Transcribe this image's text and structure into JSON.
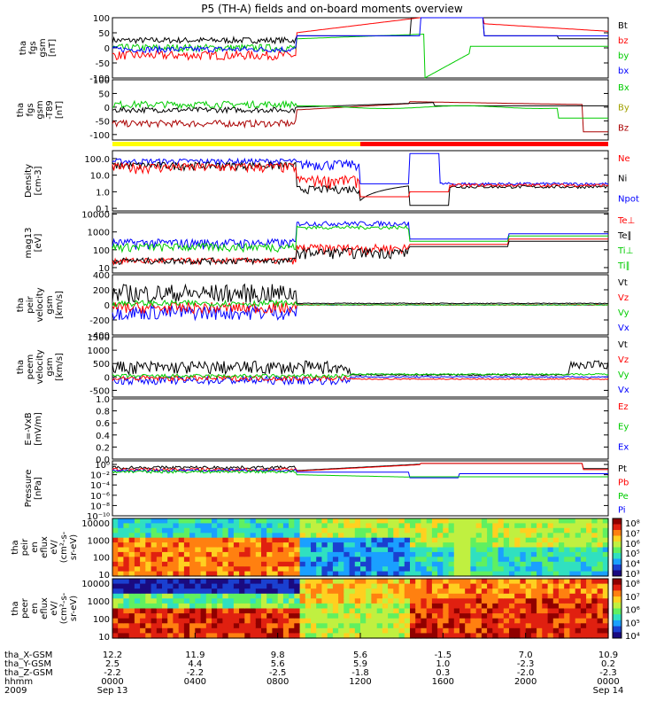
{
  "chart_data": {
    "type": "line",
    "title": "P5 (TH-A) fields and on-board moments overview",
    "panels": [
      {
        "id": "fgs",
        "ylabel_lines": [
          "tha",
          "fgs",
          "gsm",
          "[nT]"
        ],
        "ticks": [
          "100",
          "50",
          "0",
          "-50",
          "-100"
        ],
        "tick_vals": [
          100,
          50,
          0,
          -50,
          -100
        ],
        "ylim": [
          -100,
          100
        ],
        "legend": [
          {
            "name": "Bt",
            "color": "#000000"
          },
          {
            "name": "bz",
            "color": "#ff0000"
          },
          {
            "name": "by",
            "color": "#00cc00"
          },
          {
            "name": "bx",
            "color": "#0000ff"
          }
        ]
      },
      {
        "id": "fgs_t89",
        "ylabel_lines": [
          "tha",
          "fgs",
          "gsm",
          "-T89",
          "[nT]"
        ],
        "ticks": [
          "100",
          "50",
          "0",
          "-50",
          "-100"
        ],
        "tick_vals": [
          100,
          50,
          0,
          -50,
          -100
        ],
        "ylim": [
          -120,
          100
        ],
        "legend": [
          {
            "name": "Bx",
            "color": "#00cc00"
          },
          {
            "name": "By",
            "color": "#a0a000"
          },
          {
            "name": "Bz",
            "color": "#aa0000"
          }
        ]
      },
      {
        "id": "density",
        "ylabel_lines": [
          "Density",
          "[cm-3]"
        ],
        "ticks": [
          "100.0",
          "10.0",
          "1.0",
          "0.1"
        ],
        "tick_vals": [
          100,
          10,
          1,
          0.1
        ],
        "ylim": [
          0.07,
          300
        ],
        "log": true,
        "legend": [
          {
            "name": "Ne",
            "color": "#ff0000"
          },
          {
            "name": "Ni",
            "color": "#000000"
          },
          {
            "name": "Npot",
            "color": "#0000ff"
          }
        ]
      },
      {
        "id": "temperature",
        "ylabel_lines": [
          "mag13",
          "[eV]"
        ],
        "ticks": [
          "10000",
          "1000",
          "100",
          "10"
        ],
        "tick_vals": [
          10000,
          1000,
          100,
          10
        ],
        "ylim": [
          5,
          12000
        ],
        "log": true,
        "legend": [
          {
            "name": "Te⊥",
            "color": "#ff0000"
          },
          {
            "name": "Te∥",
            "color": "#000000"
          },
          {
            "name": "Ti⊥",
            "color": "#00cc00"
          },
          {
            "name": "Ti∥",
            "color": "#00cc00"
          }
        ]
      },
      {
        "id": "peir_vel",
        "ylabel_lines": [
          "tha",
          "peir",
          "velocity",
          "gsm",
          "[km/s]"
        ],
        "ticks": [
          "400",
          "200",
          "0",
          "-200",
          "-400"
        ],
        "tick_vals": [
          400,
          200,
          0,
          -200,
          -400
        ],
        "ylim": [
          -400,
          400
        ],
        "legend": [
          {
            "name": "Vt",
            "color": "#000000"
          },
          {
            "name": "Vz",
            "color": "#ff0000"
          },
          {
            "name": "Vy",
            "color": "#00cc00"
          },
          {
            "name": "Vx",
            "color": "#0000ff"
          }
        ]
      },
      {
        "id": "peem_vel",
        "ylabel_lines": [
          "tha",
          "peem",
          "velocity",
          "gsm",
          "[km/s]"
        ],
        "ticks": [
          "1500",
          "1000",
          "500",
          "0",
          "-500"
        ],
        "tick_vals": [
          1500,
          1000,
          500,
          0,
          -500
        ],
        "ylim": [
          -750,
          1500
        ],
        "legend": [
          {
            "name": "Vt",
            "color": "#000000"
          },
          {
            "name": "Vz",
            "color": "#ff0000"
          },
          {
            "name": "Vy",
            "color": "#00cc00"
          },
          {
            "name": "Vx",
            "color": "#0000ff"
          }
        ]
      },
      {
        "id": "efield",
        "ylabel_lines": [
          "E=-VxB",
          "[mV/m]"
        ],
        "ticks": [
          "1.0",
          "0.8",
          "0.6",
          "0.4",
          "0.2",
          "0.0"
        ],
        "tick_vals": [
          1,
          0.8,
          0.6,
          0.4,
          0.2,
          0
        ],
        "ylim": [
          0,
          1
        ],
        "legend": [
          {
            "name": "Ez",
            "color": "#ff0000"
          },
          {
            "name": "Ey",
            "color": "#00cc00"
          },
          {
            "name": "Ex",
            "color": "#0000ff"
          }
        ]
      },
      {
        "id": "pressure",
        "ylabel_lines": [
          "Pressure",
          "[nPa]"
        ],
        "ticks": [
          "10⁰",
          "10⁻²",
          "10⁻⁴",
          "10⁻⁶",
          "10⁻⁸",
          "10⁻¹⁰"
        ],
        "tick_vals": [
          0,
          -2,
          -4,
          -6,
          -8,
          -10
        ],
        "ylim": [
          -10,
          0.7
        ],
        "log": true,
        "legend": [
          {
            "name": "Pt",
            "color": "#000000"
          },
          {
            "name": "Pb",
            "color": "#ff0000"
          },
          {
            "name": "Pe",
            "color": "#00cc00"
          },
          {
            "name": "Pi",
            "color": "#0000ff"
          }
        ]
      },
      {
        "id": "peir_spec",
        "ylabel_lines": [
          "tha",
          "peir",
          "en",
          "eflux",
          "eV/",
          "(cm²-s-",
          "sr-eV)"
        ],
        "ticks": [
          "10000",
          "1000",
          "100",
          "10"
        ],
        "tick_vals": [
          10000,
          1000,
          100,
          10
        ],
        "spectrogram": true
      },
      {
        "id": "peer_spec",
        "ylabel_lines": [
          "tha",
          "peer",
          "en",
          "eflux",
          "eV/",
          "(cm²-s-",
          "sr-eV)"
        ],
        "ticks": [
          "10000",
          "1000",
          "100",
          "10"
        ],
        "tick_vals": [
          10000,
          1000,
          100,
          10
        ],
        "spectrogram": true
      }
    ],
    "colorbars": [
      {
        "ticks": [
          "10⁸",
          "10⁷",
          "10⁶",
          "10⁵",
          "10⁴",
          "10³"
        ]
      },
      {
        "ticks": [
          "10⁸",
          "10⁷",
          "10⁶",
          "10⁵",
          "10⁴"
        ]
      }
    ],
    "x_axis": {
      "rows": [
        {
          "label": "tha_X-GSM",
          "values": [
            "12.2",
            "11.9",
            "9.8",
            "5.6",
            "-1.5",
            "7.0",
            "10.9"
          ]
        },
        {
          "label": "tha_Y-GSM",
          "values": [
            "2.5",
            "4.4",
            "5.6",
            "5.9",
            "1.0",
            "-2.3",
            "0.2"
          ]
        },
        {
          "label": "tha_Z-GSM",
          "values": [
            "-2.2",
            "-2.2",
            "-2.5",
            "-1.8",
            "0.3",
            "-2.0",
            "-2.3"
          ]
        },
        {
          "label": "hhmm",
          "values": [
            "0000",
            "0400",
            "0800",
            "1200",
            "1600",
            "2000",
            "0000"
          ]
        },
        {
          "label": "2009",
          "values": [
            "Sep 13",
            "",
            "",
            "",
            "",
            "",
            "Sep 14"
          ]
        }
      ]
    }
  }
}
